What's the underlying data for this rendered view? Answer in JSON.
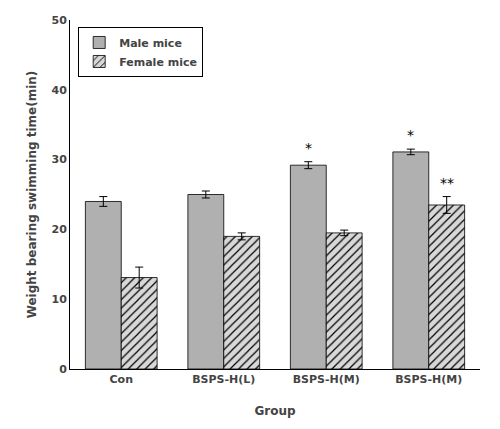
{
  "chart_data": {
    "type": "bar",
    "xlabel": "Group",
    "ylabel": "Weight bearing swimming time(min)",
    "categories": [
      "Con",
      "BSPS-H(L)",
      "BSPS-H(M)",
      "BSPS-H(M)"
    ],
    "series": [
      {
        "name": "Male mice",
        "color": "#b0b0b0",
        "values": [
          24.0,
          25.0,
          29.2,
          31.1
        ],
        "errors": [
          0.7,
          0.5,
          0.5,
          0.4
        ],
        "annotations": [
          null,
          null,
          "*",
          "*"
        ]
      },
      {
        "name": "Female mice",
        "color": "#d8d8d8",
        "values": [
          13.1,
          19.0,
          19.5,
          23.5
        ],
        "errors": [
          1.5,
          0.5,
          0.4,
          1.2
        ],
        "annotations": [
          null,
          null,
          null,
          "**"
        ]
      }
    ],
    "ylim": [
      0,
      50
    ],
    "yticks": [
      0,
      10,
      20,
      30,
      40,
      50
    ],
    "grid": false,
    "legend": "upper left"
  }
}
